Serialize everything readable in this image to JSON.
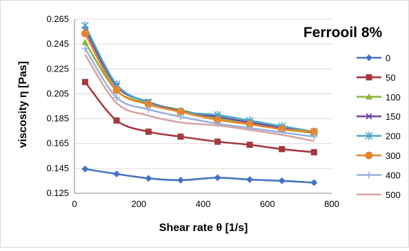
{
  "chart_data": {
    "type": "line",
    "title": "Ferrooil 8%",
    "xlabel": "Shear rate θ [1/s]",
    "ylabel": "viscosity η [Pas]",
    "xlim": [
      0,
      800
    ],
    "ylim": [
      0.125,
      0.265
    ],
    "x_ticks": [
      "0",
      "200",
      "400",
      "600",
      "800"
    ],
    "y_ticks": [
      "0.125",
      "0.145",
      "0.165",
      "0.185",
      "0.205",
      "0.225",
      "0.245",
      "0.265"
    ],
    "grid": true,
    "legend_position": "right",
    "x": [
      33,
      131,
      230,
      330,
      445,
      545,
      645,
      745
    ],
    "series": [
      {
        "name": "0",
        "color": "#4472c4",
        "marker": "diamond",
        "values": [
          0.1445,
          0.1405,
          0.137,
          0.1355,
          0.1375,
          0.136,
          0.135,
          0.1335
        ]
      },
      {
        "name": "50",
        "color": "#a5383d",
        "marker": "square",
        "values": [
          0.2145,
          0.1835,
          0.1745,
          0.1705,
          0.1665,
          0.164,
          0.1605,
          0.158
        ]
      },
      {
        "name": "100",
        "color": "#8cb43c",
        "marker": "triangle",
        "values": [
          0.2465,
          0.2075,
          0.1975,
          0.192,
          0.185,
          0.181,
          0.1765,
          0.1735
        ]
      },
      {
        "name": "150",
        "color": "#6e4a9e",
        "marker": "x",
        "values": [
          0.257,
          0.211,
          0.1985,
          0.191,
          0.1865,
          0.182,
          0.1775,
          0.174
        ]
      },
      {
        "name": "200",
        "color": "#4ba7c6",
        "marker": "star",
        "values": [
          0.26,
          0.2125,
          0.198,
          0.1905,
          0.188,
          0.1835,
          0.179,
          0.1745
        ]
      },
      {
        "name": "300",
        "color": "#e8862b",
        "marker": "circle",
        "values": [
          0.2535,
          0.208,
          0.1965,
          0.1905,
          0.184,
          0.1805,
          0.1765,
          0.1745
        ]
      },
      {
        "name": "400",
        "color": "#9bb1dd",
        "marker": "plus",
        "values": [
          0.2415,
          0.202,
          0.1925,
          0.1865,
          0.181,
          0.1775,
          0.174,
          0.1705
        ]
      },
      {
        "name": "500",
        "color": "#d7a4a4",
        "marker": "none",
        "values": [
          0.2365,
          0.1975,
          0.1875,
          0.182,
          0.1795,
          0.176,
          0.172,
          0.167
        ]
      }
    ]
  }
}
